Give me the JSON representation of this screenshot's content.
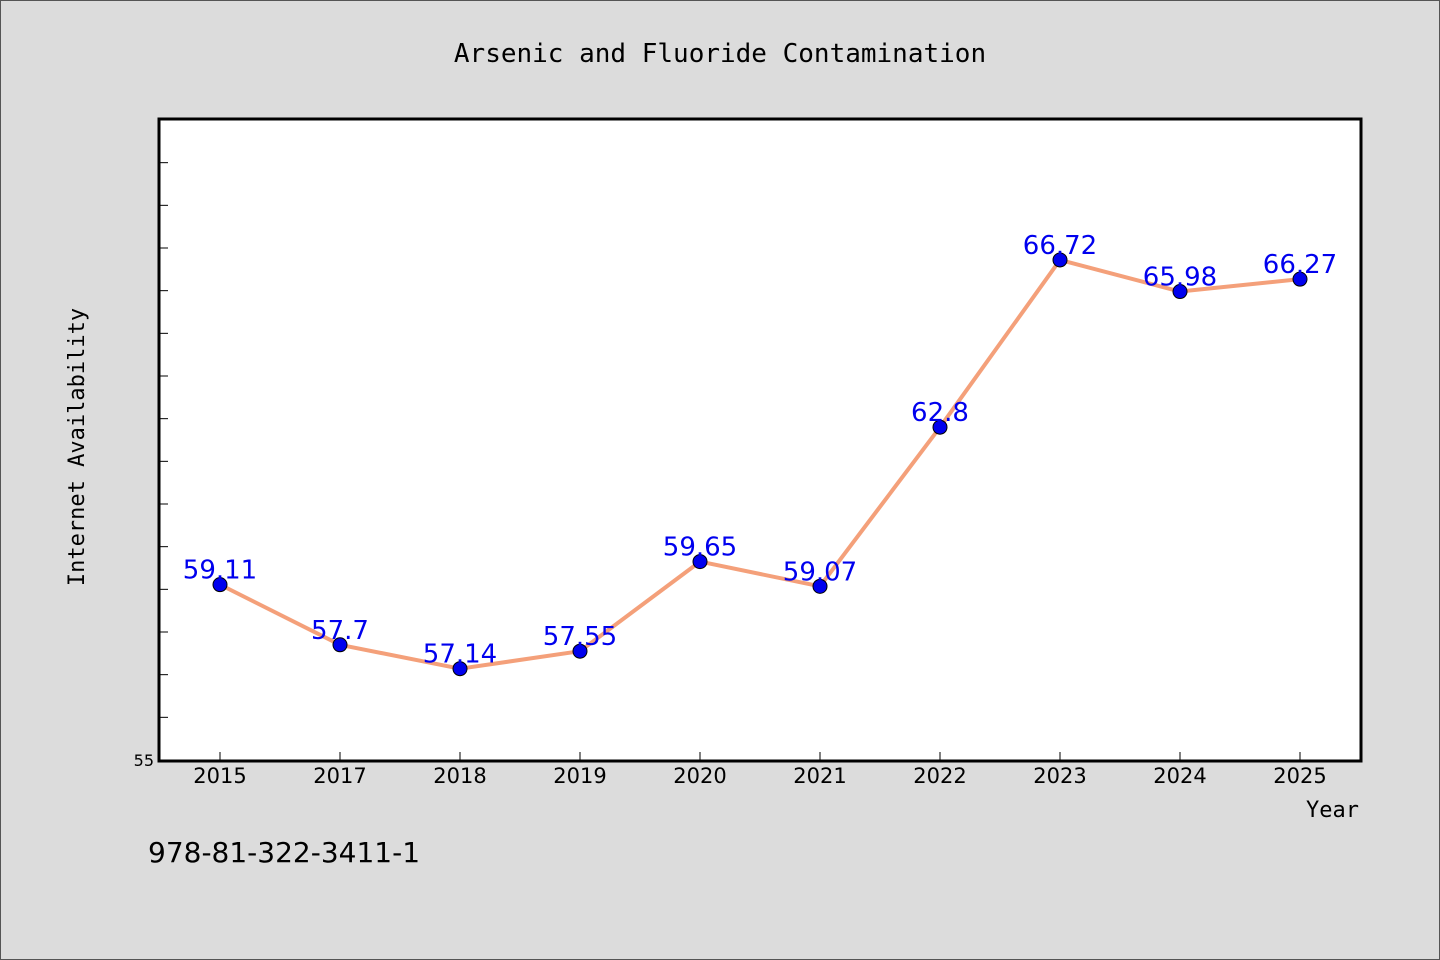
{
  "colors": {
    "background": "#dcdcdc",
    "plot_background": "#ffffff",
    "line": "#f4a07a",
    "marker": "#0000ee",
    "data_label": "#0000ee"
  },
  "footer": {
    "isbn": "978-81-322-3411-1"
  },
  "chart_data": {
    "type": "line",
    "title": "Arsenic and Fluoride Contamination",
    "xlabel": "Year",
    "ylabel": "Internet Availability",
    "categories": [
      "2015",
      "2017",
      "2018",
      "2019",
      "2020",
      "2021",
      "2022",
      "2023",
      "2024",
      "2025"
    ],
    "series": [
      {
        "values": [
          59.11,
          57.7,
          57.14,
          57.55,
          59.65,
          59.07,
          62.8,
          66.72,
          65.98,
          66.27
        ],
        "labels": [
          "59.11",
          "57.7",
          "57.14",
          "57.55",
          "59.65",
          "59.07",
          "62.8",
          "66.72",
          "65.98",
          "66.27"
        ]
      }
    ],
    "ylim": [
      55,
      70
    ],
    "ytick_labels": [
      "55"
    ],
    "grid": false,
    "legend": "none"
  }
}
